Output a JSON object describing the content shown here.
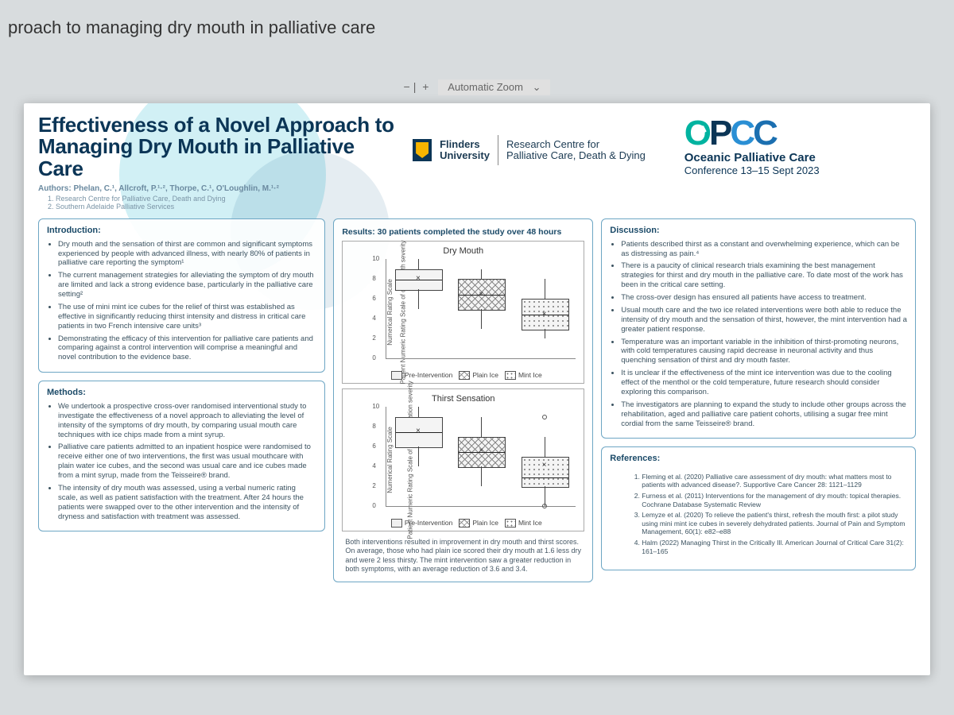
{
  "browser": {
    "title_fragment": "proach to managing dry mouth in palliative care"
  },
  "zoom": {
    "minus": "−",
    "plus": "+",
    "label": "Automatic Zoom",
    "chev": "⌄"
  },
  "poster": {
    "title": "Effectiveness of a Novel Approach to Managing Dry Mouth in Palliative Care",
    "authors": "Authors: Phelan, C.¹, Allcroft, P.¹·², Thorpe, C.¹, O'Loughlin, M.¹·²",
    "affil1": "1.  Research Centre for Palliative Care, Death and Dying",
    "affil2": "2.  Southern Adelaide Palliative Services",
    "uni_name": "Flinders\nUniversity",
    "centre_name": "Research Centre for\nPalliative Care, Death & Dying",
    "conf_name": "Oceanic Palliative Care",
    "conf_date": "Conference 13–15 Sept 2023"
  },
  "intro": {
    "heading": "Introduction:",
    "items": [
      "Dry mouth and the sensation of thirst are common and significant symptoms experienced by people with advanced illness, with nearly 80% of patients in palliative care reporting the symptom¹",
      "The current management strategies for alleviating the symptom of dry mouth are limited and lack a strong evidence base, particularly in the palliative care setting²",
      "The use of mini mint ice cubes for the relief of thirst was established as effective in significantly reducing thirst intensity and distress in critical care patients in two French intensive care units³",
      "Demonstrating the efficacy of this intervention for palliative care patients and comparing against a control intervention will comprise a meaningful and novel contribution to the evidence base."
    ]
  },
  "methods": {
    "heading": "Methods:",
    "items": [
      "We undertook a prospective cross-over randomised interventional study to investigate the effectiveness of a novel approach to alleviating the level of intensity of the symptoms of dry mouth, by comparing usual mouth care techniques with ice chips made from a mint syrup.",
      "Palliative care patients admitted to an inpatient hospice were randomised to receive either one of two interventions, the first was usual mouthcare with plain water ice cubes, and the second was usual care and ice cubes made from a mint syrup, made from the Teisseire® brand.",
      "The intensity of dry mouth was assessed, using a verbal numeric rating scale, as well as patient satisfaction with the treatment. After 24 hours the patients were swapped over to the other intervention and the intensity of dryness and satisfaction with treatment was assessed."
    ]
  },
  "results": {
    "heading": "Results: 30 patients completed the study over 48 hours",
    "footer": "Both interventions resulted in improvement in dry mouth and thirst scores. On average, those who had plain ice scored their dry mouth at 1.6 less dry and were 2 less thirsty. The mint intervention saw a greater reduction in both symptoms, with an average reduction of 3.6 and 3.4.",
    "ylabel_inner": "Numerical Rating Scale",
    "legend": {
      "a": "Pre-Intervention",
      "b": "Plain Ice",
      "c": "Mint Ice"
    },
    "chart1": {
      "title": "Dry Mouth",
      "ylabel_outer": "Patient Numeric Rating Scale of dry mouth severity",
      "ylim": [
        0,
        10
      ],
      "yticks": [
        0,
        2,
        4,
        6,
        8,
        10
      ],
      "boxes": [
        {
          "q1": 7,
          "med": 8,
          "q3": 9,
          "lo": 5,
          "hi": 10,
          "mean": 8.0,
          "pattern": "plain"
        },
        {
          "q1": 5,
          "med": 6.5,
          "q3": 8,
          "lo": 3,
          "hi": 9,
          "mean": 6.4,
          "pattern": "x"
        },
        {
          "q1": 3,
          "med": 4.5,
          "q3": 6,
          "lo": 2,
          "hi": 8,
          "mean": 4.4,
          "pattern": "d"
        }
      ]
    },
    "chart2": {
      "title": "Thirst Sensation",
      "ylabel_outer": "Patient Numeric Rating Scale of thirst sensation severity",
      "ylim": [
        0,
        10
      ],
      "yticks": [
        0,
        2,
        4,
        6,
        8,
        10
      ],
      "boxes": [
        {
          "q1": 6,
          "med": 7.5,
          "q3": 9,
          "lo": 4,
          "hi": 10,
          "mean": 7.5,
          "pattern": "plain"
        },
        {
          "q1": 4,
          "med": 5.5,
          "q3": 7,
          "lo": 2,
          "hi": 9,
          "mean": 5.5,
          "pattern": "x"
        },
        {
          "q1": 2,
          "med": 3,
          "q3": 5,
          "lo": 0,
          "hi": 7,
          "mean": 4.1,
          "pattern": "d"
        }
      ],
      "outliers": [
        {
          "series": 2,
          "v": 9
        },
        {
          "series": 2,
          "v": 0
        }
      ]
    }
  },
  "discussion": {
    "heading": "Discussion:",
    "items": [
      "Patients described thirst as a constant and overwhelming experience, which can be as distressing as pain.⁴",
      "There is a paucity of clinical research trials examining the best management strategies for thirst and dry mouth in the palliative care. To date most of the work has been in the critical care setting.",
      "The cross-over design has ensured all patients have access to treatment.",
      "Usual mouth care and the two ice related interventions were both able to reduce the intensity of dry mouth and the sensation of thirst, however, the mint intervention had a greater patient response.",
      "Temperature was an important variable in the inhibition of thirst-promoting neurons, with cold temperatures causing rapid decrease in neuronal activity and thus quenching sensation of thirst and dry mouth faster.",
      "It is unclear if the effectiveness of the mint ice intervention was due to the cooling effect of the menthol or the cold temperature, future research should consider exploring this comparison.",
      "The investigators are planning to expand the study to include other groups across the rehabilitation, aged and palliative care patient cohorts, utilising a sugar free mint cordial from the same Teisseire® brand."
    ]
  },
  "refs": {
    "heading": "References:",
    "items": [
      "Fleming et al. (2020) Palliative care assessment of dry mouth: what matters most to patients with advanced disease?. Supportive Care Cancer 28: 1121–1129",
      "Furness et al. (2011) Interventions for the management of dry mouth: topical therapies. Cochrane Database Systematic Review",
      "Lemyze et al. (2020) To relieve the patient's thirst, refresh the mouth first: a pilot study using mini mint ice cubes in severely dehydrated patients. Journal of Pain and Symptom Management, 60(1): e82–e88",
      "Halm (2022) Managing Thirst in the Critically Ill. American Journal of Critical Care 31(2): 161–165"
    ]
  },
  "style": {
    "accent": "#0b3556",
    "card_border": "#6da6c4",
    "text": "#3b5260"
  }
}
